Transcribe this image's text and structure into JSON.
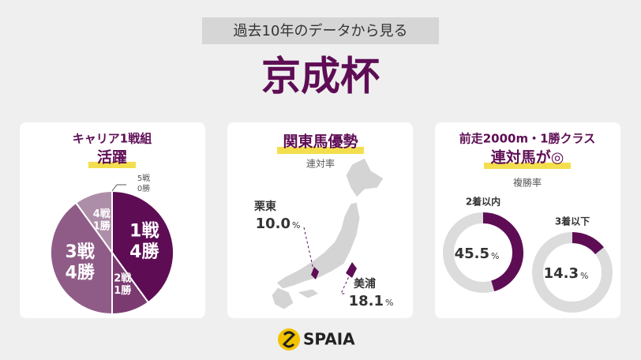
{
  "header": {
    "subtitle": "過去10年のデータから見る",
    "title": "京成杯"
  },
  "panels": [
    {
      "title_lines": [
        "キャリア1戦組",
        "活躍"
      ],
      "chart": {
        "type": "pie",
        "categories": [
          "1戦",
          "2戦",
          "3戦",
          "4戦",
          "5戦"
        ],
        "values": [
          4,
          1,
          4,
          1,
          0
        ],
        "value_labels": [
          "4勝",
          "1勝",
          "4勝",
          "1勝",
          "0勝"
        ],
        "colors": [
          "#5e0d55",
          "#7b3b71",
          "#8f5c87",
          "#ad8ea8",
          "#c9b5c5"
        ]
      }
    },
    {
      "title": "関東馬優勢",
      "subtitle": "連対率",
      "unit": "%",
      "regions": [
        {
          "name": "栗東",
          "value": 10.0,
          "value_label": "10.0"
        },
        {
          "name": "美浦",
          "value": 18.1,
          "value_label": "18.1"
        }
      ]
    },
    {
      "title_lines": [
        "前走2000m・1勝クラス",
        "連対馬が◎"
      ],
      "subtitle": "複勝率",
      "chart": {
        "type": "donut",
        "categories": [
          "2着以内",
          "3着以下"
        ],
        "values": [
          45.5,
          14.3
        ],
        "value_labels": [
          "45.5",
          "14.3"
        ],
        "unit": "%",
        "color": "#5e0d55",
        "track": "#dcdcdc"
      }
    }
  ],
  "footer": {
    "brand": "SPAIA"
  }
}
